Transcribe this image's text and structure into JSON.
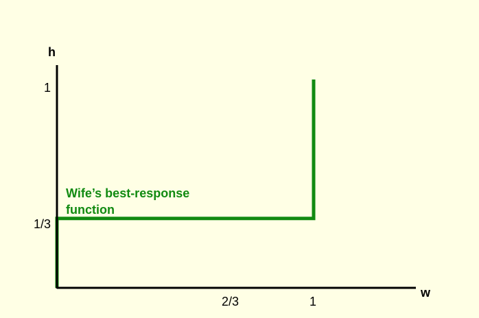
{
  "axes": {
    "x_label": "w",
    "y_label": "h",
    "x_ticks": [
      "2/3",
      "1"
    ],
    "y_ticks": [
      "1",
      "1/3"
    ]
  },
  "curve": {
    "label_line1": "Wife’s best-response",
    "label_line2": "function",
    "color": "#118a11"
  },
  "chart_data": {
    "type": "line",
    "title": "",
    "xlabel": "w",
    "ylabel": "h",
    "xlim": [
      0,
      1.35
    ],
    "ylim": [
      0,
      1.06
    ],
    "series": [
      {
        "name": "Wife’s best-response function",
        "x": [
          0,
          0,
          1,
          1
        ],
        "y": [
          0,
          0.3333,
          0.3333,
          1
        ]
      }
    ],
    "annotations": [
      "Wife’s best-response function"
    ]
  }
}
